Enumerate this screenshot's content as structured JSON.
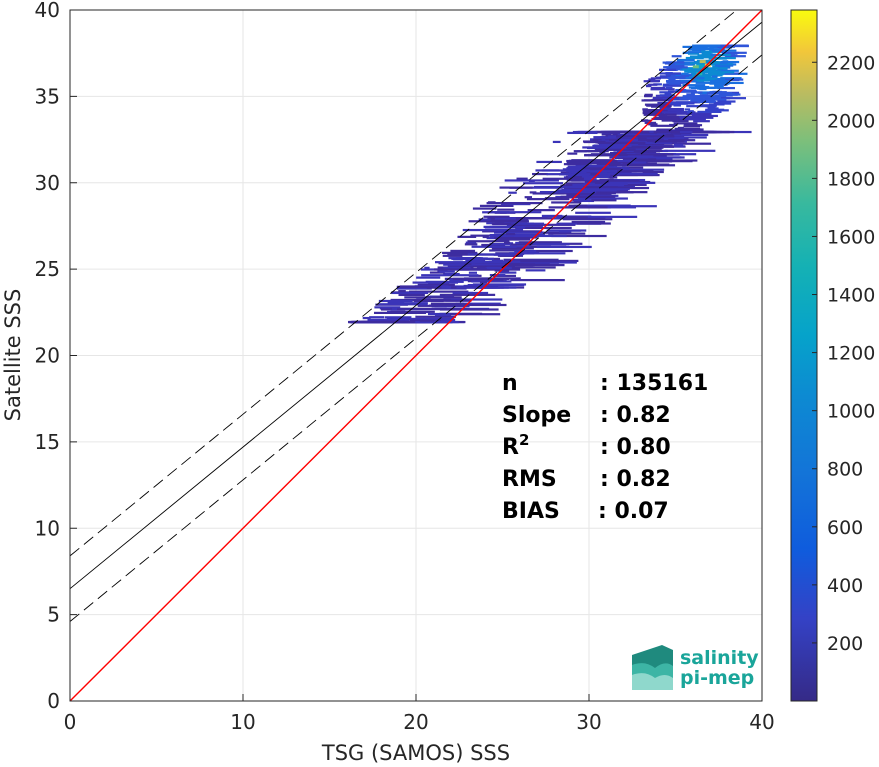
{
  "chart_data": {
    "type": "heatmap",
    "xlabel": "TSG (SAMOS) SSS",
    "ylabel": "Satellite SSS",
    "xlim": [
      0,
      40
    ],
    "ylim": [
      0,
      40
    ],
    "xticks": [
      0,
      10,
      20,
      30,
      40
    ],
    "yticks": [
      0,
      5,
      10,
      15,
      20,
      25,
      30,
      35,
      40
    ],
    "grid": true,
    "colorbar": {
      "colormap": "parula",
      "range": [
        0,
        2380
      ],
      "ticks": [
        200,
        400,
        600,
        800,
        1000,
        1200,
        1400,
        1600,
        1800,
        2000,
        2200
      ]
    },
    "lines": [
      {
        "kind": "one-to-one",
        "color": "#ff0000",
        "slope": 1.0,
        "intercept": 0.0
      },
      {
        "kind": "regression",
        "color": "#000000",
        "slope": 0.82,
        "intercept": 6.5
      },
      {
        "kind": "regression-upper",
        "color": "#000000",
        "style": "dashed",
        "slope": 0.82,
        "intercept": 8.4
      },
      {
        "kind": "regression-lower",
        "color": "#000000",
        "style": "dashed",
        "slope": 0.82,
        "intercept": 4.6
      }
    ],
    "density_clusters": [
      {
        "x_range": [
          33,
          38
        ],
        "y_range": [
          31,
          38
        ],
        "peak_count": 2300
      },
      {
        "x_range": [
          28,
          34
        ],
        "y_range": [
          28,
          33
        ],
        "peak_count": 400
      },
      {
        "x_range": [
          16,
          26
        ],
        "y_range": [
          22,
          28
        ],
        "peak_count": 200
      },
      {
        "x_range": [
          22,
          36
        ],
        "y_range": [
          24,
          33
        ],
        "peak_count": 150
      }
    ],
    "stats": [
      {
        "label": "n",
        "value": ": 135161"
      },
      {
        "label": "Slope",
        "value": ": 0.82"
      },
      {
        "label": "R",
        "sup": "2",
        "value": ": 0.80"
      },
      {
        "label": "RMS",
        "value": ": 0.82"
      },
      {
        "label": "BIAS",
        "value": ": 0.07"
      }
    ]
  },
  "logo": {
    "line1": "salinity",
    "line2": "pi-mep",
    "color_text": "#1aa59a",
    "color_dark": "#3b6e68"
  }
}
